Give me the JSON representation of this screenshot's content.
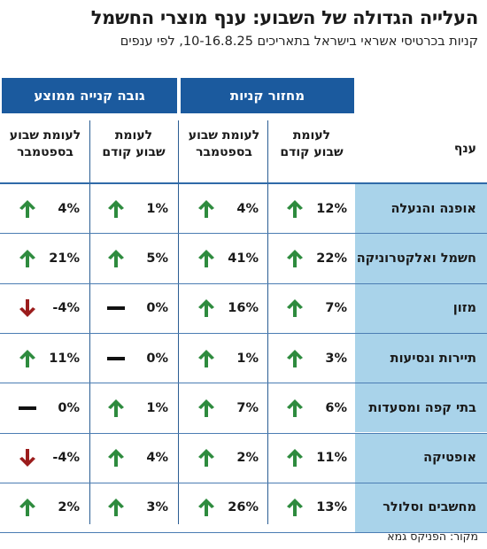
{
  "title": "העלייה הגדולה של השבוע: ענף מוצרי החשמל",
  "subtitle": "קניות בכרטיסי אשראי בישראל בתאריכים 10-16.8.25, לפי ענפים",
  "header": {
    "purchases": "מחזור קניות",
    "avg_purchase": "גובה קנייה ממוצע",
    "branch": "ענף",
    "prev_week": [
      "לעומת",
      "שבוע קודם"
    ],
    "sept_week": [
      "לעומת שבוע",
      "בספטמבר"
    ]
  },
  "colors": {
    "header_bg": "#1b5a9e",
    "label_bg": "#a9d3ea",
    "up": "#2e8b3e",
    "down": "#9b1c1c",
    "flat": "#111111"
  },
  "rows": [
    {
      "branch": "אופנה והנעלה",
      "purchases_prev": {
        "value": "12%",
        "dir": "up"
      },
      "purchases_sept": {
        "value": "4%",
        "dir": "up"
      },
      "avg_prev": {
        "value": "1%",
        "dir": "up"
      },
      "avg_sept": {
        "value": "4%",
        "dir": "up"
      }
    },
    {
      "branch": "חשמל ואלקטרוניקה",
      "purchases_prev": {
        "value": "22%",
        "dir": "up"
      },
      "purchases_sept": {
        "value": "41%",
        "dir": "up"
      },
      "avg_prev": {
        "value": "5%",
        "dir": "up"
      },
      "avg_sept": {
        "value": "21%",
        "dir": "up"
      }
    },
    {
      "branch": "מזון",
      "purchases_prev": {
        "value": "7%",
        "dir": "up"
      },
      "purchases_sept": {
        "value": "16%",
        "dir": "up"
      },
      "avg_prev": {
        "value": "0%",
        "dir": "flat"
      },
      "avg_sept": {
        "value": "-4%",
        "dir": "down"
      }
    },
    {
      "branch": "תיירות ונסיעות",
      "purchases_prev": {
        "value": "3%",
        "dir": "up"
      },
      "purchases_sept": {
        "value": "1%",
        "dir": "up"
      },
      "avg_prev": {
        "value": "0%",
        "dir": "flat"
      },
      "avg_sept": {
        "value": "11%",
        "dir": "up"
      }
    },
    {
      "branch": "בתי קפה ומסעדות",
      "purchases_prev": {
        "value": "6%",
        "dir": "up"
      },
      "purchases_sept": {
        "value": "7%",
        "dir": "up"
      },
      "avg_prev": {
        "value": "1%",
        "dir": "up"
      },
      "avg_sept": {
        "value": "0%",
        "dir": "flat"
      }
    },
    {
      "branch": "אופטיקה",
      "purchases_prev": {
        "value": "11%",
        "dir": "up"
      },
      "purchases_sept": {
        "value": "2%",
        "dir": "up"
      },
      "avg_prev": {
        "value": "4%",
        "dir": "up"
      },
      "avg_sept": {
        "value": "-4%",
        "dir": "down"
      }
    },
    {
      "branch": "מחשבים וסלולר",
      "purchases_prev": {
        "value": "13%",
        "dir": "up"
      },
      "purchases_sept": {
        "value": "26%",
        "dir": "up"
      },
      "avg_prev": {
        "value": "3%",
        "dir": "up"
      },
      "avg_sept": {
        "value": "2%",
        "dir": "up"
      }
    }
  ],
  "source": "מקור: הפניקס גמא"
}
